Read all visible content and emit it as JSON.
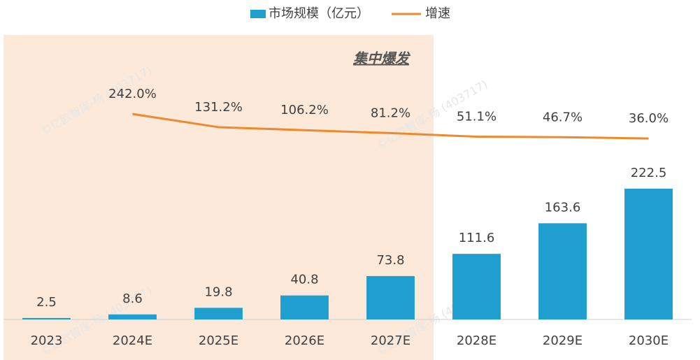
{
  "chart_data": {
    "type": "bar-line",
    "categories": [
      "2023",
      "2024E",
      "2025E",
      "2026E",
      "2027E",
      "2028E",
      "2029E",
      "2030E"
    ],
    "series": [
      {
        "name": "市场规模（亿元）",
        "color": "#1f9fd0",
        "type": "bar",
        "values": [
          2.5,
          8.6,
          19.8,
          40.8,
          73.8,
          111.6,
          163.6,
          222.5
        ]
      },
      {
        "name": "增速",
        "color": "#ee8a2e",
        "type": "line",
        "axis": "y2",
        "values": [
          null,
          242.0,
          131.2,
          106.2,
          81.2,
          51.1,
          46.7,
          36.0
        ],
        "value_labels": [
          null,
          "242.0%",
          "131.2%",
          "106.2%",
          "81.2%",
          "51.1%",
          "46.7%",
          "36.0%"
        ]
      }
    ],
    "ylim": [
      0,
      472
    ],
    "y2lim": [
      -1490,
      850
    ],
    "annotation": "集中爆发",
    "watermark": "©亿欧智库-杨 (403717)",
    "legend": "top"
  }
}
